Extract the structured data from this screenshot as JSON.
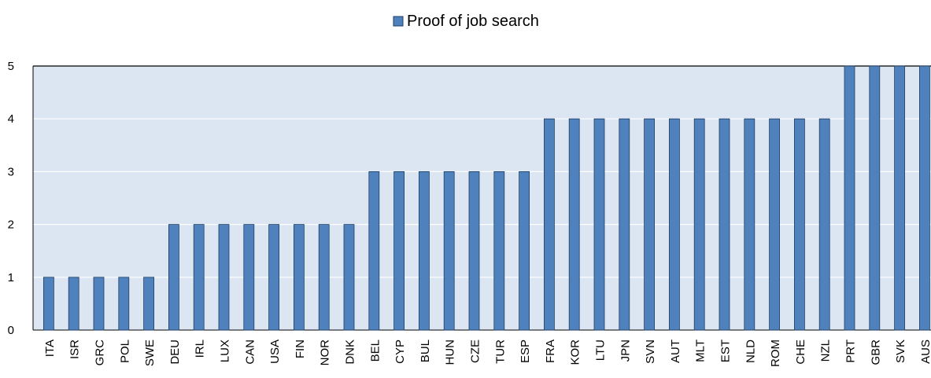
{
  "chart_data": {
    "type": "bar",
    "categories": [
      "ITA",
      "ISR",
      "GRC",
      "POL",
      "SWE",
      "DEU",
      "IRL",
      "LUX",
      "CAN",
      "USA",
      "FIN",
      "NOR",
      "DNK",
      "BEL",
      "CYP",
      "BUL",
      "HUN",
      "CZE",
      "TUR",
      "ESP",
      "FRA",
      "KOR",
      "LTU",
      "JPN",
      "SVN",
      "AUT",
      "MLT",
      "EST",
      "NLD",
      "ROM",
      "CHE",
      "NZL",
      "PRT",
      "GBR",
      "SVK",
      "AUS"
    ],
    "series": [
      {
        "name": "Proof of job search",
        "color": "#4f81bd",
        "values": [
          1,
          1,
          1,
          1,
          1,
          2,
          2,
          2,
          2,
          2,
          2,
          2,
          2,
          3,
          3,
          3,
          3,
          3,
          3,
          3,
          4,
          4,
          4,
          4,
          4,
          4,
          4,
          4,
          4,
          4,
          4,
          4,
          5,
          5,
          5,
          5
        ]
      }
    ],
    "ylim": [
      0,
      5
    ],
    "yticks": [
      0,
      1,
      2,
      3,
      4,
      5
    ],
    "grid": true,
    "legend": "top"
  }
}
